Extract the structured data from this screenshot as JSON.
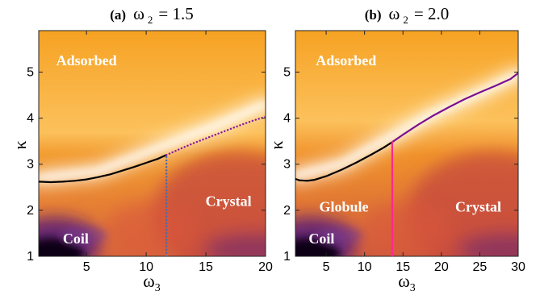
{
  "chart_data": [
    {
      "type": "heatmap",
      "panel": "(a)",
      "title_symbol": "ω",
      "title_subscript": "2",
      "title_value": "= 1.5",
      "xlabel_symbol": "ω",
      "xlabel_subscript": "3",
      "ylabel": "κ",
      "xlim": [
        1,
        20
      ],
      "ylim": [
        1,
        5.9
      ],
      "xticks": [
        {
          "value": 5,
          "label": "5"
        },
        {
          "value": 10,
          "label": "10"
        },
        {
          "value": 15,
          "label": "15"
        },
        {
          "value": 20,
          "label": "20"
        }
      ],
      "yticks": [
        {
          "value": 1,
          "label": "1"
        },
        {
          "value": 2,
          "label": "2"
        },
        {
          "value": 3,
          "label": "3"
        },
        {
          "value": 4,
          "label": "4"
        },
        {
          "value": 5,
          "label": "5"
        }
      ],
      "regions": [
        {
          "name": "Adsorbed",
          "x": 5.0,
          "y": 5.22
        },
        {
          "name": "Crystal",
          "x": 16.9,
          "y": 2.17
        },
        {
          "name": "Coil",
          "x": 4.1,
          "y": 1.35
        }
      ],
      "boundaries": [
        {
          "style": "solid",
          "color": "#000000",
          "points": [
            [
              1,
              2.62
            ],
            [
              2,
              2.61
            ],
            [
              3,
              2.62
            ],
            [
              4,
              2.64
            ],
            [
              5,
              2.67
            ],
            [
              6,
              2.72
            ],
            [
              7,
              2.78
            ],
            [
              8,
              2.86
            ],
            [
              9,
              2.94
            ],
            [
              10,
              3.03
            ],
            [
              11,
              3.12
            ],
            [
              11.7,
              3.2
            ]
          ]
        },
        {
          "style": "dotted",
          "color": "#8a1a9e",
          "points": [
            [
              11.7,
              3.2
            ],
            [
              13,
              3.35
            ],
            [
              14,
              3.46
            ],
            [
              15,
              3.56
            ],
            [
              16,
              3.66
            ],
            [
              17,
              3.76
            ],
            [
              18,
              3.86
            ],
            [
              19,
              3.95
            ],
            [
              20,
              4.03
            ]
          ]
        },
        {
          "style": "dotted",
          "color": "#4a6aa8",
          "points": [
            [
              11.7,
              1.0
            ],
            [
              11.7,
              3.2
            ]
          ]
        }
      ],
      "white_band": [
        [
          1,
          2.7
        ],
        [
          6,
          2.85
        ],
        [
          10,
          3.25
        ],
        [
          13,
          3.55
        ],
        [
          16,
          3.85
        ],
        [
          20,
          4.3
        ]
      ]
    },
    {
      "type": "heatmap",
      "panel": "(b)",
      "title_symbol": "ω",
      "title_subscript": "2",
      "title_value": "= 2.0",
      "xlabel_symbol": "ω",
      "xlabel_subscript": "3",
      "ylabel": "κ",
      "xlim": [
        1,
        30
      ],
      "ylim": [
        1,
        5.9
      ],
      "xticks": [
        {
          "value": 5,
          "label": "5"
        },
        {
          "value": 10,
          "label": "10"
        },
        {
          "value": 15,
          "label": "15"
        },
        {
          "value": 20,
          "label": "20"
        },
        {
          "value": 25,
          "label": "25"
        },
        {
          "value": 30,
          "label": "30"
        }
      ],
      "yticks": [
        {
          "value": 1,
          "label": "1"
        },
        {
          "value": 2,
          "label": "2"
        },
        {
          "value": 3,
          "label": "3"
        },
        {
          "value": 4,
          "label": "4"
        },
        {
          "value": 5,
          "label": "5"
        }
      ],
      "regions": [
        {
          "name": "Adsorbed",
          "x": 7.6,
          "y": 5.22
        },
        {
          "name": "Globule",
          "x": 7.3,
          "y": 2.04
        },
        {
          "name": "Crystal",
          "x": 24.8,
          "y": 2.04
        },
        {
          "name": "Coil",
          "x": 4.4,
          "y": 1.35
        }
      ],
      "boundaries": [
        {
          "style": "solid",
          "color": "#000000",
          "points": [
            [
              1,
              2.68
            ],
            [
              1.5,
              2.65
            ],
            [
              2.5,
              2.64
            ],
            [
              3.5,
              2.66
            ],
            [
              5,
              2.74
            ],
            [
              7,
              2.88
            ],
            [
              9,
              3.04
            ],
            [
              11,
              3.22
            ],
            [
              12.5,
              3.36
            ],
            [
              13.6,
              3.48
            ]
          ]
        },
        {
          "style": "solid",
          "color": "#7a1090",
          "points": [
            [
              13.6,
              3.48
            ],
            [
              15,
              3.64
            ],
            [
              17,
              3.86
            ],
            [
              19,
              4.06
            ],
            [
              21,
              4.24
            ],
            [
              23,
              4.41
            ],
            [
              25,
              4.56
            ],
            [
              27,
              4.7
            ],
            [
              29,
              4.85
            ],
            [
              30,
              4.98
            ]
          ]
        },
        {
          "style": "solid",
          "color": "#ff2a8a",
          "points": [
            [
              13.6,
              1.0
            ],
            [
              13.6,
              3.48
            ]
          ]
        }
      ],
      "white_band": [
        [
          1,
          2.75
        ],
        [
          7,
          3.0
        ],
        [
          13,
          3.55
        ],
        [
          19,
          4.1
        ],
        [
          25,
          4.55
        ],
        [
          30,
          4.95
        ]
      ]
    }
  ]
}
